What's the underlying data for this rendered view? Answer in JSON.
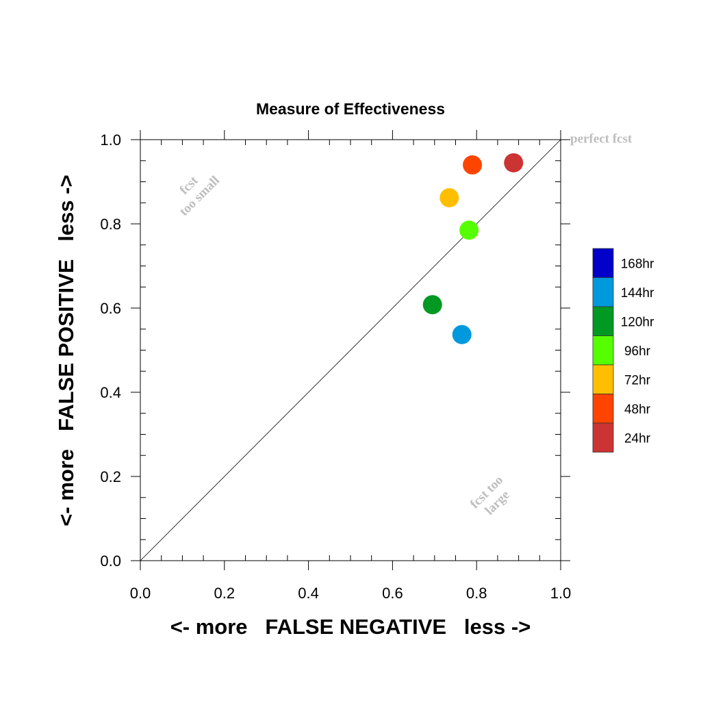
{
  "chart_data": {
    "type": "scatter",
    "title": "Measure of Effectiveness",
    "xlabel": "<- more   FALSE NEGATIVE   less ->",
    "ylabel": "<- more   FALSE POSITIVE   less ->",
    "xlim": [
      0.0,
      1.0
    ],
    "ylim": [
      0.0,
      1.0
    ],
    "xticks": [
      "0.0",
      "0.2",
      "0.4",
      "0.6",
      "0.8",
      "1.0"
    ],
    "yticks": [
      "0.0",
      "0.2",
      "0.4",
      "0.6",
      "0.8",
      "1.0"
    ],
    "grid": false,
    "reference_line": {
      "from": [
        0,
        0
      ],
      "to": [
        1,
        1
      ]
    },
    "annotations": {
      "perfect": "perfect fcst",
      "too_small_1": "fcst",
      "too_small_2": "too small",
      "too_large_1": "fcst too",
      "too_large_2": "large"
    },
    "points": [
      {
        "label": "24hr",
        "x": 0.888,
        "y": 0.945,
        "color": "#cc3333"
      },
      {
        "label": "48hr",
        "x": 0.79,
        "y": 0.94,
        "color": "#ff4400"
      },
      {
        "label": "72hr",
        "x": 0.735,
        "y": 0.862,
        "color": "#ffbf00"
      },
      {
        "label": "96hr",
        "x": 0.782,
        "y": 0.785,
        "color": "#55ff00"
      },
      {
        "label": "120hr",
        "x": 0.695,
        "y": 0.608,
        "color": "#009922"
      },
      {
        "label": "144hr",
        "x": 0.765,
        "y": 0.537,
        "color": "#0099dd"
      }
    ],
    "legend": {
      "placement": "right",
      "items": [
        {
          "label": "168hr",
          "color": "#0000c8"
        },
        {
          "label": "144hr",
          "color": "#0099dd"
        },
        {
          "label": "120hr",
          "color": "#009922"
        },
        {
          "label": "96hr",
          "color": "#55ff00"
        },
        {
          "label": "72hr",
          "color": "#ffbf00"
        },
        {
          "label": "48hr",
          "color": "#ff4400"
        },
        {
          "label": "24hr",
          "color": "#cc3333"
        }
      ]
    }
  }
}
